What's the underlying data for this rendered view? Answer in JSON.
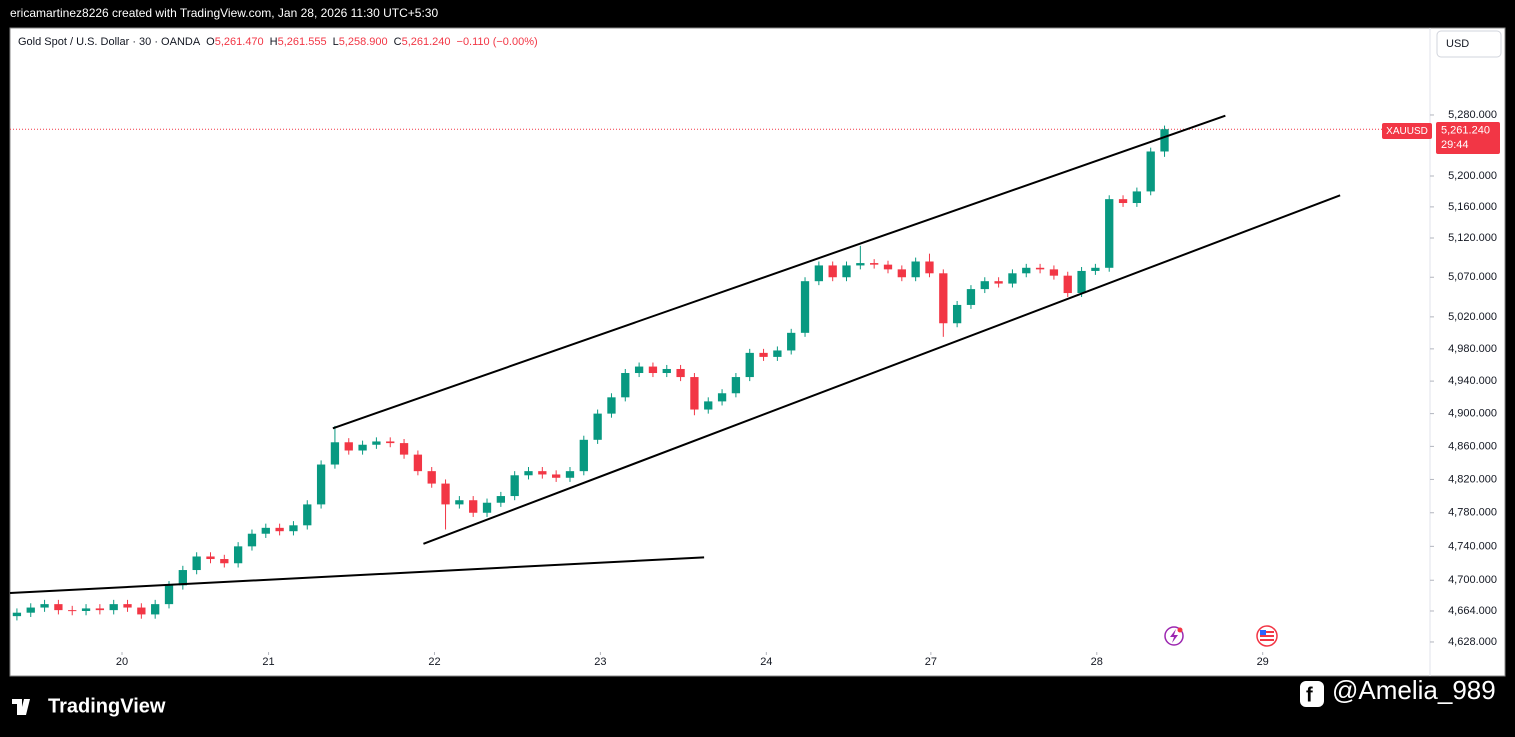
{
  "attribution": "ericamartinez8226 created with TradingView.com, Jan 28, 2026 11:30 UTC+5:30",
  "brand": "TradingView",
  "watermark": "@Amelia_989",
  "currency_button": "USD",
  "chart_data": {
    "type": "candlestick",
    "title": "Gold Spot / U.S. Dollar · 30 · OANDA",
    "ohlc_legend": [
      {
        "key": "O",
        "value": "5,261.470"
      },
      {
        "key": "H",
        "value": "5,261.555"
      },
      {
        "key": "L",
        "value": "5,258.900"
      },
      {
        "key": "C",
        "value": "5,261.240"
      }
    ],
    "change": "−0.110 (−0.00%)",
    "symbol": "XAUUSD",
    "last_price": {
      "value": 5261.24,
      "label": "5,261.240"
    },
    "countdown": "29:44",
    "up_color": "#089981",
    "down_color": "#f23645",
    "log_scale": true,
    "open": [
      4658,
      4662,
      4668,
      4672,
      4665,
      4664,
      4667,
      4665,
      4672,
      4668,
      4660,
      4672,
      4694,
      4712,
      4728,
      4725,
      4720,
      4740,
      4755,
      4762,
      4758,
      4765,
      4790,
      4838,
      4865,
      4855,
      4862,
      4866,
      4864,
      4850,
      4830,
      4815,
      4790,
      4795,
      4780,
      4792,
      4800,
      4825,
      4830,
      4826,
      4822,
      4830,
      4868,
      4900,
      4920,
      4950,
      4958,
      4950,
      4955,
      4945,
      4905,
      4915,
      4925,
      4945,
      4975,
      4970,
      4978,
      5000,
      5065,
      5085,
      5070,
      5085,
      5088,
      5086,
      5080,
      5070,
      5090,
      5075,
      5012,
      5035,
      5055,
      5065,
      5062,
      5075,
      5082,
      5080,
      5072,
      5050,
      5078,
      5082,
      5170,
      5165,
      5180,
      5232
    ],
    "high": [
      4667,
      4673,
      4677,
      4677,
      4670,
      4672,
      4672,
      4677,
      4677,
      4673,
      4677,
      4699,
      4717,
      4733,
      4733,
      4730,
      4745,
      4760,
      4767,
      4767,
      4770,
      4795,
      4843,
      4885,
      4870,
      4867,
      4871,
      4871,
      4869,
      4855,
      4835,
      4820,
      4800,
      4800,
      4797,
      4805,
      4830,
      4835,
      4835,
      4831,
      4835,
      4873,
      4905,
      4925,
      4955,
      4963,
      4963,
      4960,
      4960,
      4950,
      4920,
      4930,
      4950,
      4980,
      4980,
      4983,
      5005,
      5070,
      5090,
      5090,
      5090,
      5110,
      5093,
      5091,
      5085,
      5095,
      5100,
      5080,
      5040,
      5060,
      5070,
      5070,
      5080,
      5087,
      5087,
      5085,
      5077,
      5083,
      5087,
      5175,
      5175,
      5185,
      5237,
      5266
    ],
    "low": [
      4653,
      4657,
      4663,
      4660,
      4659,
      4659,
      4660,
      4660,
      4663,
      4655,
      4655,
      4667,
      4689,
      4707,
      4720,
      4715,
      4715,
      4735,
      4750,
      4753,
      4753,
      4760,
      4785,
      4833,
      4850,
      4850,
      4857,
      4859,
      4845,
      4825,
      4810,
      4760,
      4785,
      4775,
      4775,
      4787,
      4795,
      4820,
      4821,
      4817,
      4817,
      4825,
      4863,
      4895,
      4915,
      4945,
      4945,
      4945,
      4940,
      4898,
      4900,
      4910,
      4920,
      4940,
      4965,
      4965,
      4973,
      4995,
      5060,
      5065,
      5065,
      5080,
      5081,
      5075,
      5065,
      5065,
      5070,
      4995,
      5007,
      5030,
      5050,
      5057,
      5057,
      5070,
      5075,
      5067,
      5045,
      5045,
      5073,
      5077,
      5160,
      5160,
      5175,
      5225
    ],
    "close": [
      4662,
      4668,
      4672,
      4665,
      4664,
      4667,
      4665,
      4672,
      4668,
      4660,
      4672,
      4694,
      4712,
      4728,
      4725,
      4720,
      4740,
      4755,
      4762,
      4758,
      4765,
      4790,
      4838,
      4865,
      4855,
      4862,
      4866,
      4864,
      4850,
      4830,
      4815,
      4790,
      4795,
      4780,
      4792,
      4800,
      4825,
      4830,
      4826,
      4822,
      4830,
      4868,
      4900,
      4920,
      4950,
      4958,
      4950,
      4955,
      4945,
      4905,
      4915,
      4925,
      4945,
      4975,
      4970,
      4978,
      5000,
      5065,
      5085,
      5070,
      5085,
      5088,
      5086,
      5080,
      5070,
      5090,
      5075,
      5012,
      5035,
      5055,
      5065,
      5062,
      5075,
      5082,
      5080,
      5072,
      5050,
      5078,
      5082,
      5170,
      5165,
      5180,
      5232,
      5261.24
    ],
    "trendlines": [
      {
        "x": [
          22.85,
          87.4
        ],
        "y": [
          4882,
          5279
        ]
      },
      {
        "x": [
          29.4,
          95.7
        ],
        "y": [
          4743,
          5175
        ]
      },
      {
        "x": [
          -0.5,
          49.7
        ],
        "y": [
          4685,
          4727
        ]
      }
    ],
    "xlim": [
      -0.5,
      102.2
    ],
    "xticks": [
      {
        "value": 7.6,
        "label": "20"
      },
      {
        "value": 18.2,
        "label": "21"
      },
      {
        "value": 30.2,
        "label": "22"
      },
      {
        "value": 42.2,
        "label": "23"
      },
      {
        "value": 54.2,
        "label": "24"
      },
      {
        "value": 66.1,
        "label": "27"
      },
      {
        "value": 78.1,
        "label": "28"
      },
      {
        "value": 90.1,
        "label": "29"
      }
    ],
    "ylim": [
      4616.4,
      5396.1
    ],
    "yticks": [
      {
        "value": 5280,
        "label": "5,280.000"
      },
      {
        "value": 5200,
        "label": "5,200.000"
      },
      {
        "value": 5160,
        "label": "5,160.000"
      },
      {
        "value": 5120,
        "label": "5,120.000"
      },
      {
        "value": 5070,
        "label": "5,070.000"
      },
      {
        "value": 5020,
        "label": "5,020.000"
      },
      {
        "value": 4980,
        "label": "4,980.000"
      },
      {
        "value": 4940,
        "label": "4,940.000"
      },
      {
        "value": 4900,
        "label": "4,900.000"
      },
      {
        "value": 4860,
        "label": "4,860.000"
      },
      {
        "value": 4820,
        "label": "4,820.000"
      },
      {
        "value": 4780,
        "label": "4,780.000"
      },
      {
        "value": 4740,
        "label": "4,740.000"
      },
      {
        "value": 4700,
        "label": "4,700.000"
      },
      {
        "value": 4664,
        "label": "4,664.000"
      },
      {
        "value": 4628,
        "label": "4,628.000"
      }
    ]
  }
}
